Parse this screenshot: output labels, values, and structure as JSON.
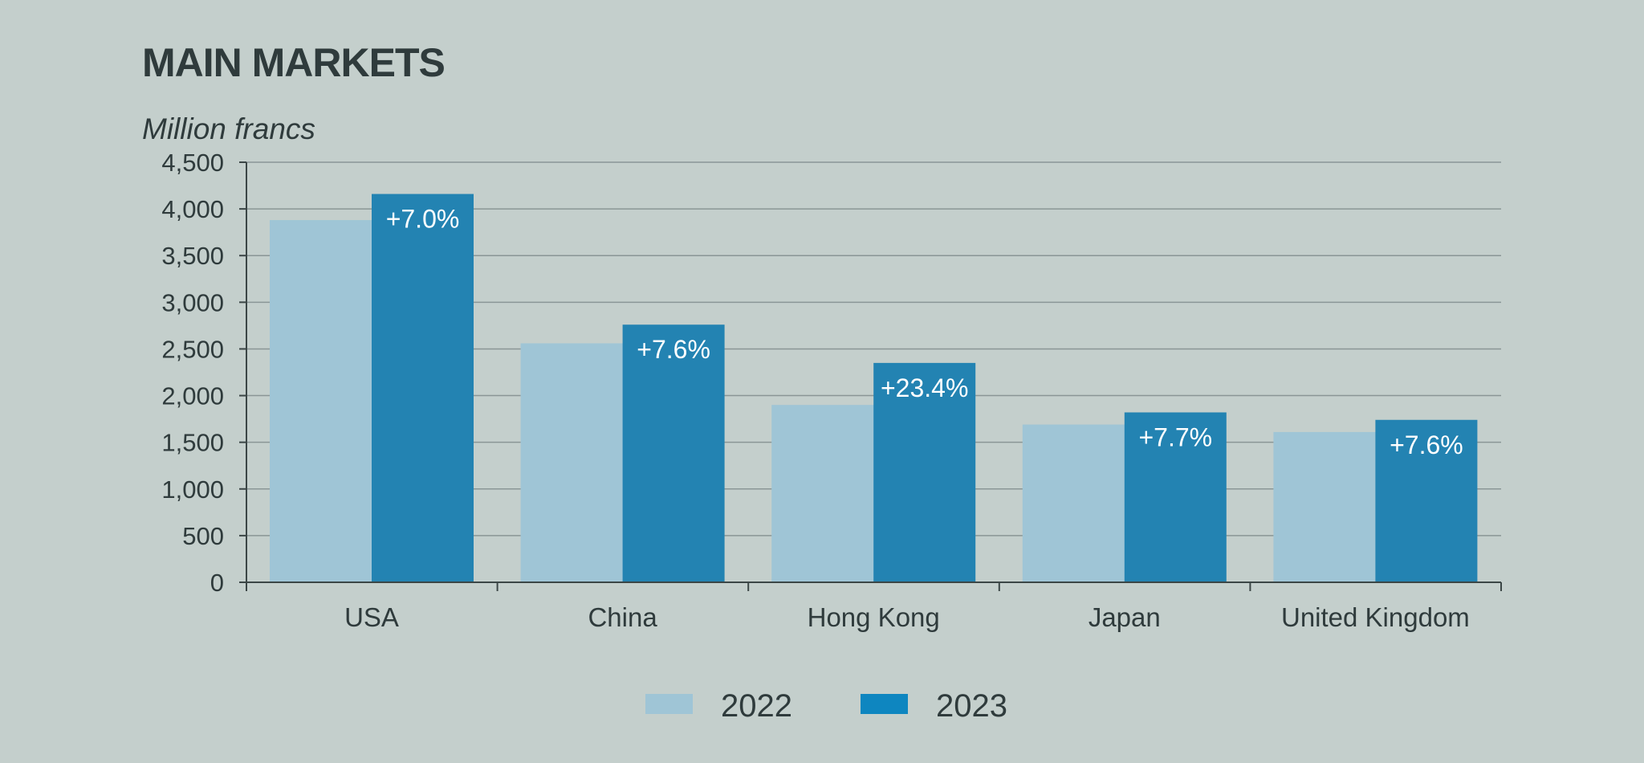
{
  "chart_data": {
    "type": "bar",
    "title": "MAIN MARKETS",
    "unit_label": "Million francs",
    "categories": [
      "USA",
      "China",
      "Hong Kong",
      "Japan",
      "United Kingdom"
    ],
    "series": [
      {
        "name": "2022",
        "color": "#9fc5d6",
        "values": [
          3880,
          2560,
          1900,
          1690,
          1610
        ]
      },
      {
        "name": "2023",
        "color": "#2383b2",
        "values": [
          4160,
          2760,
          2350,
          1820,
          1740
        ]
      }
    ],
    "data_labels": [
      "+7.0%",
      "+7.6%",
      "+23.4%",
      "+7.7%",
      "+7.6%"
    ],
    "ylim": [
      0,
      4500
    ],
    "yticks": [
      0,
      500,
      1000,
      1500,
      2000,
      2500,
      3000,
      3500,
      4000,
      4500
    ],
    "ytick_labels": [
      "0",
      "500",
      "1,000",
      "1,500",
      "2,000",
      "2,500",
      "3,000",
      "3,500",
      "4,000",
      "4,500"
    ],
    "grid": true,
    "legend": "bottom-center",
    "legend_color_2023": "#0e86c0"
  }
}
